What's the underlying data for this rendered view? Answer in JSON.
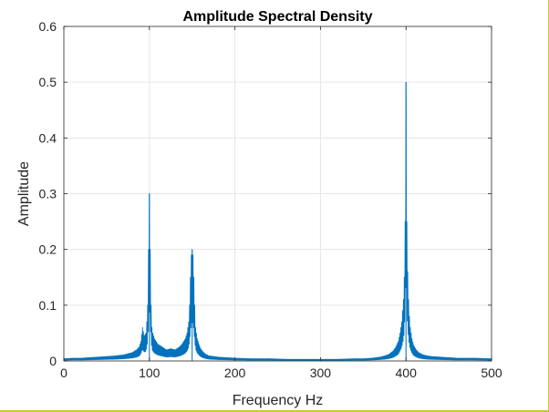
{
  "chart_data": {
    "type": "line",
    "title": "Amplitude Spectral Density",
    "xlabel": "Frequency Hz",
    "ylabel": "Amplitude",
    "xlim": [
      0,
      500
    ],
    "ylim": [
      0,
      0.6
    ],
    "xticks": [
      "0",
      "100",
      "200",
      "300",
      "400",
      "500"
    ],
    "yticks": [
      "0",
      "0.1",
      "0.2",
      "0.3",
      "0.4",
      "0.5",
      "0.6"
    ],
    "grid": true,
    "legend": "none",
    "series": [
      {
        "color": "#0072BD",
        "peaks": [
          {
            "x": 100,
            "y": 0.3
          },
          {
            "x": 150,
            "y": 0.2
          },
          {
            "x": 400,
            "y": 0.5
          }
        ],
        "x": [
          0,
          10,
          20,
          30,
          40,
          50,
          60,
          70,
          75,
          80,
          85,
          88,
          90,
          92,
          94,
          96,
          97,
          98,
          99,
          100,
          101,
          102,
          103,
          104,
          106,
          108,
          110,
          112,
          115,
          118,
          120,
          125,
          130,
          135,
          138,
          140,
          142,
          144,
          146,
          147,
          148,
          149,
          150,
          151,
          152,
          153,
          154,
          156,
          158,
          160,
          163,
          166,
          170,
          175,
          180,
          190,
          200,
          220,
          240,
          260,
          280,
          300,
          320,
          340,
          350,
          360,
          370,
          375,
          380,
          385,
          388,
          391,
          393,
          395,
          396,
          397,
          398,
          399,
          400,
          401,
          402,
          403,
          404,
          405,
          407,
          409,
          412,
          415,
          420,
          425,
          430,
          440,
          450,
          460,
          480,
          500
        ],
        "y": [
          0.004,
          0.005,
          0.005,
          0.006,
          0.007,
          0.008,
          0.009,
          0.011,
          0.013,
          0.015,
          0.02,
          0.025,
          0.035,
          0.06,
          0.045,
          0.05,
          0.07,
          0.1,
          0.2,
          0.3,
          0.2,
          0.1,
          0.06,
          0.05,
          0.04,
          0.035,
          0.03,
          0.028,
          0.025,
          0.022,
          0.02,
          0.022,
          0.02,
          0.025,
          0.03,
          0.035,
          0.04,
          0.05,
          0.07,
          0.1,
          0.15,
          0.19,
          0.2,
          0.19,
          0.15,
          0.1,
          0.06,
          0.04,
          0.03,
          0.022,
          0.016,
          0.012,
          0.009,
          0.008,
          0.007,
          0.006,
          0.005,
          0.004,
          0.004,
          0.003,
          0.003,
          0.003,
          0.003,
          0.004,
          0.004,
          0.005,
          0.007,
          0.009,
          0.012,
          0.018,
          0.025,
          0.035,
          0.05,
          0.07,
          0.09,
          0.11,
          0.15,
          0.25,
          0.5,
          0.25,
          0.16,
          0.11,
          0.08,
          0.06,
          0.04,
          0.028,
          0.02,
          0.015,
          0.011,
          0.009,
          0.008,
          0.007,
          0.006,
          0.005,
          0.005,
          0.004
        ]
      }
    ]
  },
  "colors": {
    "line": "#0072BD",
    "axes": "#262626",
    "grid": "#e6e6e6",
    "edge_rule": "#c8c832"
  }
}
